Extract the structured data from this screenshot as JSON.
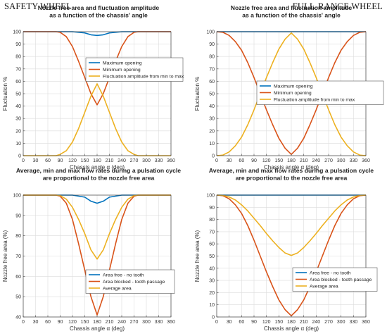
{
  "section_titles": {
    "left": "SAFETY WHEEL",
    "right": "FULL-RANGE WHEEL"
  },
  "colors": {
    "blue": "#0072bd",
    "orange": "#d95319",
    "yellow": "#edb120",
    "grid": "#dcdcdc"
  },
  "chart_data": [
    {
      "type": "line",
      "title": [
        "Nozzle free area and  fluctuation amplitude",
        "as a function of the chassis' angle"
      ],
      "xlabel": "Chassis angle α (deg)",
      "ylabel": "Fluctuation %",
      "xlim": [
        0,
        360
      ],
      "ylim": [
        0,
        100
      ],
      "xticks": [
        0,
        30,
        60,
        90,
        120,
        150,
        180,
        210,
        240,
        270,
        300,
        330,
        360
      ],
      "yticks": [
        0,
        10,
        20,
        30,
        40,
        50,
        60,
        70,
        80,
        90,
        100
      ],
      "grid": true,
      "legend_position": "middle",
      "series": [
        {
          "name": "Maximum opening",
          "color": "#0072bd",
          "x": [
            0,
            90,
            120,
            150,
            165,
            180,
            195,
            210,
            240,
            270,
            360
          ],
          "y": [
            100,
            100,
            100,
            99,
            97.5,
            97,
            97.5,
            99,
            100,
            100,
            100
          ]
        },
        {
          "name": "Minimum opening",
          "color": "#d95319",
          "x": [
            0,
            80,
            90,
            105,
            120,
            135,
            150,
            165,
            180,
            195,
            210,
            225,
            240,
            255,
            270,
            280,
            360
          ],
          "y": [
            100,
            100,
            99.5,
            96,
            88,
            76,
            63,
            50,
            41,
            50,
            63,
            76,
            88,
            96,
            99.5,
            100,
            100
          ]
        },
        {
          "name": "Fluctuation amplitude from min to max",
          "color": "#edb120",
          "x": [
            0,
            80,
            90,
            105,
            120,
            135,
            150,
            165,
            180,
            195,
            210,
            225,
            240,
            255,
            270,
            280,
            360
          ],
          "y": [
            0,
            0,
            1,
            4,
            11,
            22,
            35,
            48,
            58,
            48,
            35,
            22,
            11,
            4,
            1,
            0,
            0
          ]
        }
      ]
    },
    {
      "type": "line",
      "title": [
        "Nozzle free area and  fluctuation amplitude",
        "as a function of the chassis' angle"
      ],
      "xlabel": "Chassis angle α (deg)",
      "ylabel": "Fluctuation %",
      "xlim": [
        0,
        360
      ],
      "ylim": [
        0,
        100
      ],
      "xticks": [
        0,
        30,
        60,
        90,
        120,
        150,
        180,
        210,
        240,
        270,
        300,
        330,
        360
      ],
      "yticks": [
        0,
        10,
        20,
        30,
        40,
        50,
        60,
        70,
        80,
        90,
        100
      ],
      "grid": true,
      "legend_position": "middle",
      "series": [
        {
          "name": "Maximum opening",
          "color": "#0072bd",
          "x": [
            0,
            360
          ],
          "y": [
            100,
            100
          ]
        },
        {
          "name": "Minimum opening",
          "color": "#d95319",
          "x": [
            0,
            15,
            30,
            45,
            60,
            75,
            90,
            105,
            120,
            135,
            150,
            165,
            180,
            195,
            210,
            225,
            240,
            255,
            270,
            285,
            300,
            315,
            330,
            345,
            360
          ],
          "y": [
            100,
            99.5,
            97,
            92,
            85,
            75,
            63,
            50,
            37,
            25,
            14,
            6,
            1,
            6,
            14,
            25,
            37,
            50,
            63,
            75,
            85,
            92,
            97,
            99.5,
            100
          ]
        },
        {
          "name": "Fluctuation amplitude from min to max",
          "color": "#edb120",
          "x": [
            0,
            15,
            30,
            45,
            60,
            75,
            90,
            105,
            120,
            135,
            150,
            165,
            180,
            195,
            210,
            225,
            240,
            255,
            270,
            285,
            300,
            315,
            330,
            345,
            360
          ],
          "y": [
            0,
            0.5,
            3,
            8,
            15,
            25,
            37,
            50,
            63,
            75,
            86,
            94,
            99,
            94,
            86,
            75,
            63,
            50,
            37,
            25,
            15,
            8,
            3,
            0.5,
            0
          ]
        }
      ]
    },
    {
      "type": "line",
      "title": [
        "Average, min and max flow rates during a pulsation cycle",
        "are proportional to the nozzle free area"
      ],
      "xlabel": "Chassis angle α (deg)",
      "ylabel": "Nozzle free area (%)",
      "xlim": [
        0,
        360
      ],
      "ylim": [
        40,
        100
      ],
      "xticks": [
        0,
        30,
        60,
        90,
        120,
        150,
        180,
        210,
        240,
        270,
        300,
        330,
        360
      ],
      "yticks": [
        40,
        50,
        60,
        70,
        80,
        90,
        100
      ],
      "grid": true,
      "legend_position": "lower-right",
      "series": [
        {
          "name": "Area free - no tooth",
          "color": "#0072bd",
          "x": [
            0,
            90,
            120,
            150,
            165,
            180,
            195,
            210,
            240,
            270,
            360
          ],
          "y": [
            100,
            100,
            100,
            99,
            97,
            96,
            97,
            99,
            100,
            100,
            100
          ]
        },
        {
          "name": "Area blocked - tooth passage",
          "color": "#d95319",
          "x": [
            0,
            80,
            90,
            105,
            120,
            135,
            150,
            165,
            180,
            195,
            210,
            225,
            240,
            255,
            270,
            280,
            360
          ],
          "y": [
            100,
            100,
            99.5,
            96,
            88,
            76,
            63,
            50,
            41,
            50,
            63,
            76,
            88,
            96,
            99.5,
            100,
            100
          ]
        },
        {
          "name": "Average area",
          "color": "#edb120",
          "x": [
            0,
            80,
            90,
            105,
            120,
            135,
            150,
            165,
            180,
            195,
            210,
            225,
            240,
            255,
            270,
            280,
            360
          ],
          "y": [
            100,
            100,
            99.8,
            98,
            94,
            88,
            81,
            73,
            68.5,
            73,
            81,
            88,
            94,
            98,
            99.8,
            100,
            100
          ]
        }
      ]
    },
    {
      "type": "line",
      "title": [
        "Average, min and max flow rates during a pulsation cycle",
        "are proportional to the nozzle free area"
      ],
      "xlabel": "Chassis angle α (deg)",
      "ylabel": "Nozzle free area (%)",
      "xlim": [
        0,
        360
      ],
      "ylim": [
        0,
        100
      ],
      "xticks": [
        0,
        30,
        60,
        90,
        120,
        150,
        180,
        210,
        240,
        270,
        300,
        330,
        360
      ],
      "yticks": [
        0,
        10,
        20,
        30,
        40,
        50,
        60,
        70,
        80,
        90,
        100
      ],
      "grid": true,
      "legend_position": "lower-right",
      "series": [
        {
          "name": "Area free - no tooth",
          "color": "#0072bd",
          "x": [
            0,
            360
          ],
          "y": [
            100,
            100
          ]
        },
        {
          "name": "Area blocked - tooth passage",
          "color": "#d95319",
          "x": [
            0,
            15,
            30,
            45,
            60,
            75,
            90,
            105,
            120,
            135,
            150,
            165,
            180,
            195,
            210,
            225,
            240,
            255,
            270,
            285,
            300,
            315,
            330,
            345,
            360
          ],
          "y": [
            100,
            99.5,
            97,
            92,
            85,
            75,
            63,
            50,
            37,
            25,
            14,
            6,
            1,
            6,
            14,
            25,
            37,
            50,
            63,
            75,
            85,
            92,
            97,
            99.5,
            100
          ]
        },
        {
          "name": "Average area",
          "color": "#edb120",
          "x": [
            0,
            15,
            30,
            45,
            60,
            75,
            90,
            105,
            120,
            135,
            150,
            165,
            180,
            195,
            210,
            225,
            240,
            255,
            270,
            285,
            300,
            315,
            330,
            345,
            360
          ],
          "y": [
            100,
            99.8,
            98.5,
            96,
            92,
            87,
            81,
            75,
            68.5,
            62.5,
            57,
            52.5,
            50.5,
            52.5,
            57,
            62.5,
            68.5,
            75,
            81,
            87,
            92,
            96,
            98.5,
            99.8,
            100
          ]
        }
      ]
    }
  ]
}
